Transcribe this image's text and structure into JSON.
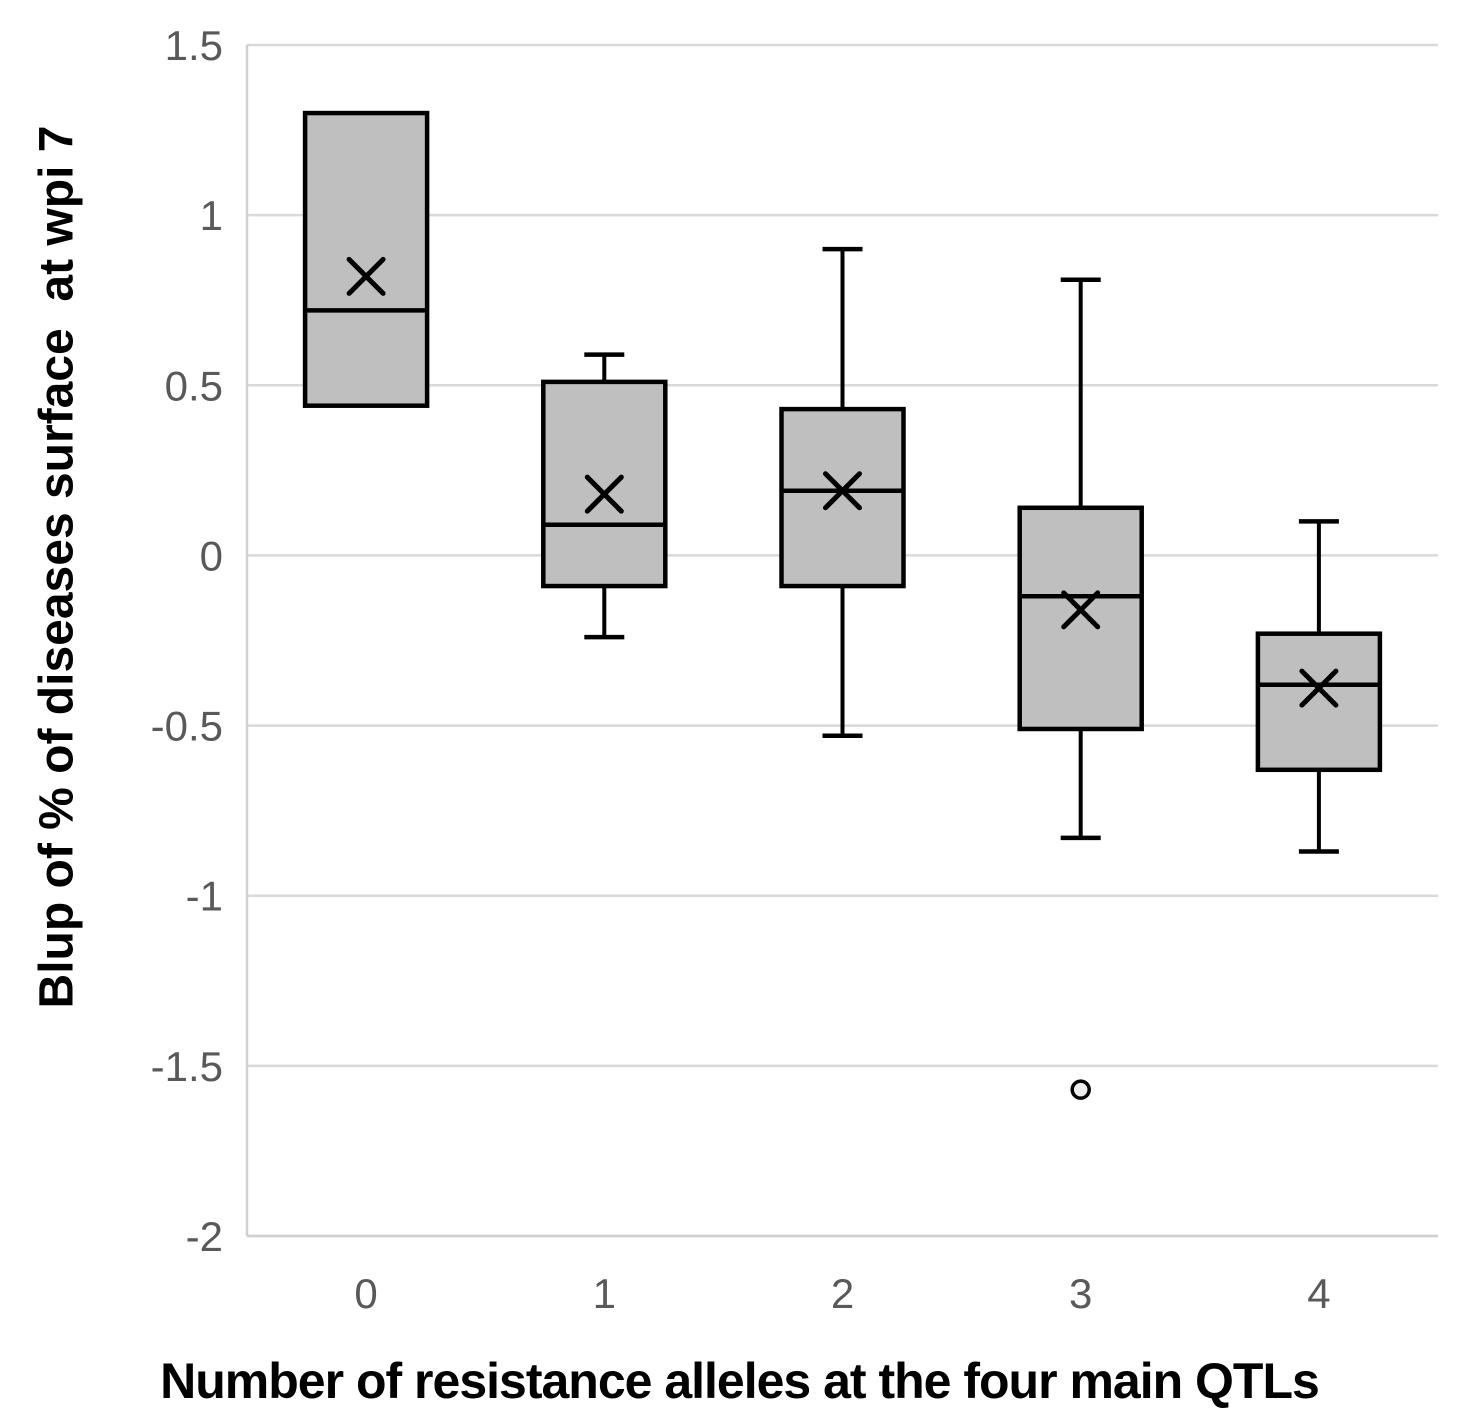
{
  "chart_data": {
    "type": "boxplot",
    "title": "",
    "xlabel": "Number of resistance alleles at the four main QTLs",
    "ylabel": "Blup of % of diseases surface  at wpi 7",
    "categories": [
      "0",
      "1",
      "2",
      "3",
      "4"
    ],
    "ylim": [
      -2,
      1.5
    ],
    "ytick_step": 0.5,
    "ytick_labels": [
      "1.5",
      "1",
      "0.5",
      "0",
      "-0.5",
      "-1",
      "-1.5",
      "-2"
    ],
    "yticks": [
      1.5,
      1,
      0.5,
      0,
      -0.5,
      -1,
      -1.5,
      -2
    ],
    "grid": true,
    "legend": false,
    "series": [
      {
        "category": "0",
        "whisker_low": null,
        "q1": 0.44,
        "median": 0.72,
        "q3": 1.3,
        "whisker_high": null,
        "mean": 0.82,
        "outliers": []
      },
      {
        "category": "1",
        "whisker_low": -0.24,
        "q1": -0.09,
        "median": 0.09,
        "q3": 0.51,
        "whisker_high": 0.59,
        "mean": 0.18,
        "outliers": []
      },
      {
        "category": "2",
        "whisker_low": -0.53,
        "q1": -0.09,
        "median": 0.19,
        "q3": 0.43,
        "whisker_high": 0.9,
        "mean": 0.19,
        "outliers": []
      },
      {
        "category": "3",
        "whisker_low": -0.83,
        "q1": -0.51,
        "median": -0.12,
        "q3": 0.14,
        "whisker_high": 0.81,
        "mean": -0.16,
        "outliers": [
          -1.57
        ]
      },
      {
        "category": "4",
        "whisker_low": -0.87,
        "q1": -0.63,
        "median": -0.38,
        "q3": -0.23,
        "whisker_high": 0.1,
        "mean": -0.39,
        "outliers": []
      }
    ],
    "colors": {
      "box_fill": "#bfbfbf",
      "box_stroke": "#000000",
      "gridline": "#d9d9d9",
      "axis_line": "#d0d0d0",
      "tick_label": "#595959",
      "axis_title": "#000000",
      "outlier_fill": "#ededed"
    }
  }
}
